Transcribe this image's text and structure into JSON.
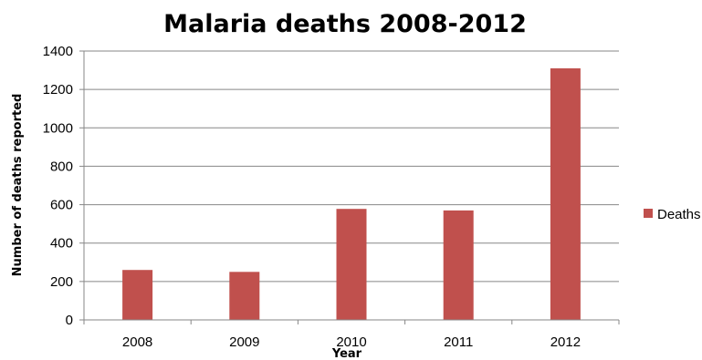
{
  "chart_data": {
    "type": "bar",
    "title": "Malaria deaths 2008-2012",
    "xlabel": "Year",
    "ylabel": "Number of deaths reported",
    "categories": [
      "2008",
      "2009",
      "2010",
      "2011",
      "2012"
    ],
    "series": [
      {
        "name": "Deaths",
        "values": [
          260,
          250,
          578,
          570,
          1310
        ],
        "color": "#c0504d"
      }
    ],
    "ylim": [
      0,
      1400
    ],
    "yticks": [
      0,
      200,
      400,
      600,
      800,
      1000,
      1200,
      1400
    ],
    "grid": true,
    "legend": "right"
  }
}
